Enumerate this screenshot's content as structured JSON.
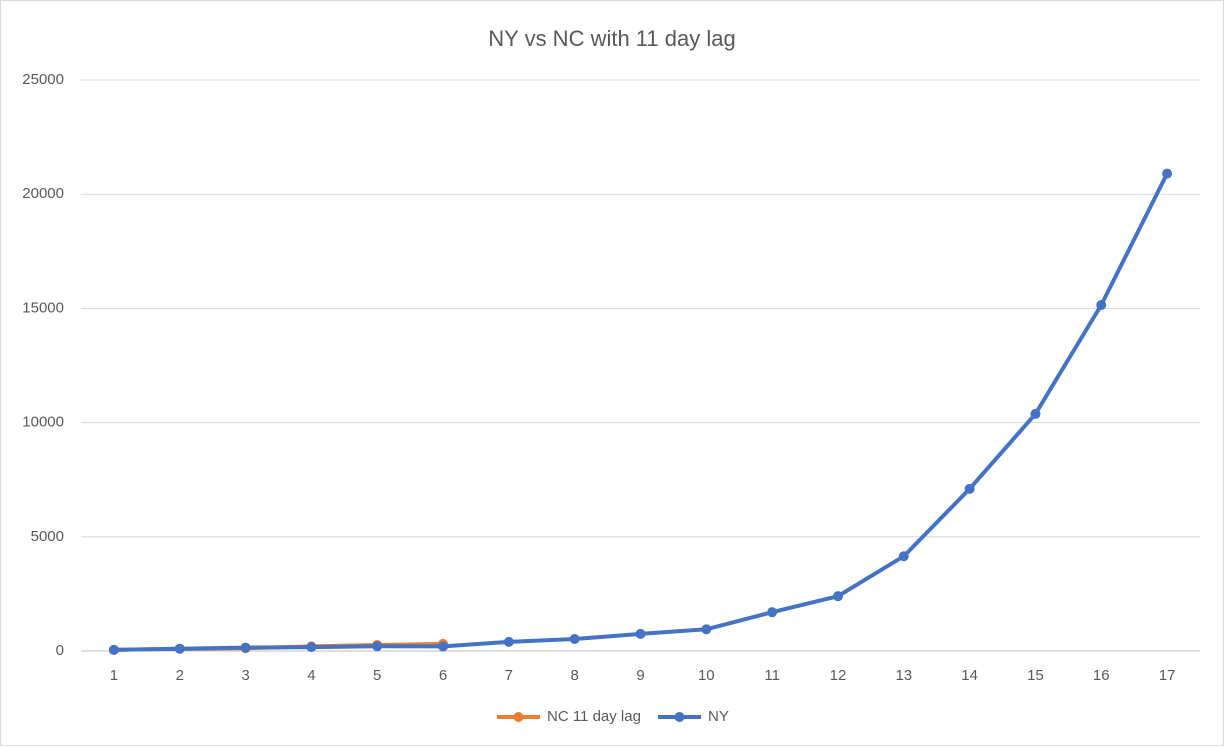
{
  "chart_data": {
    "type": "line",
    "title": "NY vs NC with 11 day lag",
    "categories": [
      1,
      2,
      3,
      4,
      5,
      6,
      7,
      8,
      9,
      10,
      11,
      12,
      13,
      14,
      15,
      16,
      17
    ],
    "series": [
      {
        "name": "NC 11 day lag",
        "color": "#ed7d31",
        "values": [
          50,
          100,
          120,
          200,
          260,
          310,
          null,
          null,
          null,
          null,
          null,
          null,
          null,
          null,
          null,
          null,
          null
        ]
      },
      {
        "name": "NY",
        "color": "#4472c4",
        "values": [
          50,
          100,
          150,
          170,
          210,
          200,
          400,
          525,
          750,
          950,
          1700,
          2400,
          4150,
          7100,
          10380,
          15150,
          20900
        ]
      }
    ],
    "ylim": [
      0,
      25000
    ],
    "yticks": [
      0,
      5000,
      10000,
      15000,
      20000,
      25000
    ],
    "grid": true,
    "legend": "bottom"
  }
}
